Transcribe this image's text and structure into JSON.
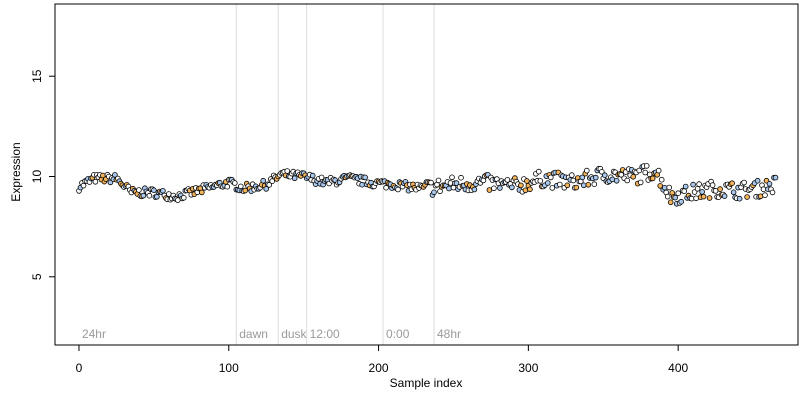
{
  "chart_data": {
    "type": "scatter",
    "xlabel": "Sample index",
    "ylabel": "Expression",
    "xlim": [
      -16,
      480
    ],
    "ylim": [
      1.6,
      18.6
    ],
    "x_ticks": [
      0,
      100,
      200,
      300,
      400
    ],
    "y_ticks": [
      5,
      10,
      15
    ],
    "grid": false,
    "legend": "none",
    "colors": {
      "point_outline": "#000000",
      "period_line": "#dcdcdc",
      "period_label": "#9a9a9a",
      "series_a": "#f5b45a",
      "series_b": "#a9c8ee",
      "neutral": "#ffffff"
    },
    "period_markers": [
      {
        "label": "24hr",
        "x": 0
      },
      {
        "label": "dawn",
        "x": 105
      },
      {
        "label": "dusk",
        "x": 133
      },
      {
        "label": "12:00",
        "x": 152
      },
      {
        "label": "0:00",
        "x": 203
      },
      {
        "label": "48hr",
        "x": 237
      }
    ],
    "series_trend": [
      [
        0,
        9.5
      ],
      [
        10,
        9.9
      ],
      [
        25,
        9.9
      ],
      [
        35,
        9.2
      ],
      [
        50,
        9.2
      ],
      [
        65,
        9.0
      ],
      [
        80,
        9.3
      ],
      [
        100,
        9.7
      ],
      [
        110,
        9.4
      ],
      [
        125,
        9.6
      ],
      [
        135,
        10.1
      ],
      [
        150,
        10.0
      ],
      [
        165,
        9.7
      ],
      [
        180,
        9.9
      ],
      [
        195,
        9.7
      ],
      [
        210,
        9.6
      ],
      [
        230,
        9.4
      ],
      [
        250,
        9.6
      ],
      [
        270,
        9.7
      ],
      [
        290,
        9.5
      ],
      [
        310,
        9.9
      ],
      [
        330,
        9.7
      ],
      [
        350,
        10.1
      ],
      [
        370,
        10.0
      ],
      [
        385,
        10.3
      ],
      [
        395,
        9.0
      ],
      [
        410,
        9.2
      ],
      [
        425,
        9.4
      ],
      [
        440,
        9.3
      ],
      [
        455,
        9.4
      ],
      [
        465,
        9.6
      ]
    ],
    "n_points": 466
  }
}
